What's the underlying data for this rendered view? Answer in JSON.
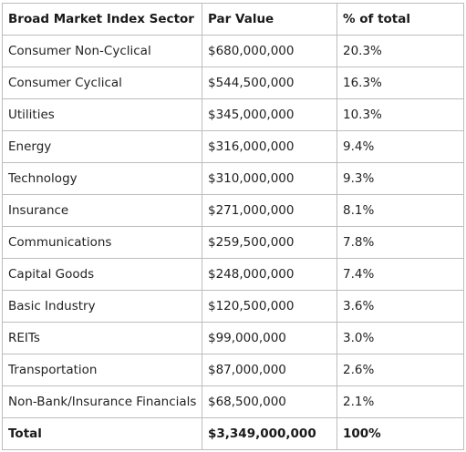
{
  "table": {
    "headers": [
      "Broad Market Index Sector",
      "Par Value",
      "% of total"
    ],
    "rows": [
      [
        "Consumer Non-Cyclical",
        "$680,000,000",
        "20.3%"
      ],
      [
        "Consumer Cyclical",
        "$544,500,000",
        "16.3%"
      ],
      [
        "Utilities",
        "$345,000,000",
        "10.3%"
      ],
      [
        "Energy",
        "$316,000,000",
        "9.4%"
      ],
      [
        "Technology",
        "$310,000,000",
        "9.3%"
      ],
      [
        "Insurance",
        "$271,000,000",
        "8.1%"
      ],
      [
        "Communications",
        "$259,500,000",
        "7.8%"
      ],
      [
        "Capital Goods",
        "$248,000,000",
        "7.4%"
      ],
      [
        "Basic Industry",
        "$120,500,000",
        "3.6%"
      ],
      [
        "REITs",
        "$99,000,000",
        "3.0%"
      ],
      [
        "Transportation",
        "$87,000,000",
        "2.6%"
      ],
      [
        "Non-Bank/Insurance Financials",
        "$68,500,000",
        "2.1%"
      ]
    ],
    "total": [
      "Total",
      "$3,349,000,000",
      "100%"
    ]
  }
}
